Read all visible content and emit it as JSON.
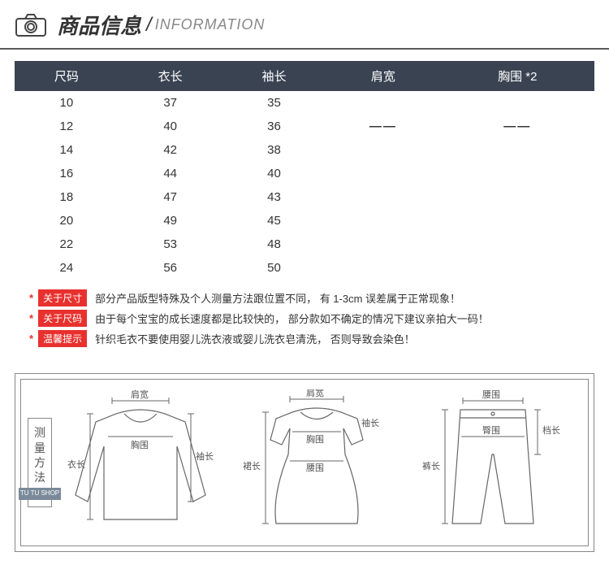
{
  "header": {
    "title_cn": "商品信息",
    "title_en": "INFORMATION"
  },
  "table": {
    "type": "table",
    "header_bg": "#3a4352",
    "header_color": "#ffffff",
    "columns": [
      "尺码",
      "衣长",
      "袖长",
      "肩宽",
      "胸围 *2"
    ],
    "rows": [
      [
        "10",
        "37",
        "35",
        "",
        ""
      ],
      [
        "12",
        "40",
        "36",
        "——",
        "——"
      ],
      [
        "14",
        "42",
        "38",
        "",
        ""
      ],
      [
        "16",
        "44",
        "40",
        "",
        ""
      ],
      [
        "18",
        "47",
        "43",
        "",
        ""
      ],
      [
        "20",
        "49",
        "45",
        "",
        ""
      ],
      [
        "22",
        "53",
        "48",
        "",
        ""
      ],
      [
        "24",
        "56",
        "50",
        "",
        ""
      ]
    ]
  },
  "notes": [
    {
      "tag": "关于尺寸",
      "text": "部分产品版型特殊及个人测量方法跟位置不同， 有 1-3cm 误差属于正常现象！"
    },
    {
      "tag": "关于尺码",
      "text": "由于每个宝宝的成长速度都是比较快的， 部分款如不确定的情况下建议亲拍大一码！"
    },
    {
      "tag": "温馨提示",
      "text": "针织毛衣不要使用婴儿洗衣液或婴儿洗衣皂清洗， 否则导致会染色！"
    }
  ],
  "note_style": {
    "star_color": "#e8312e",
    "tag_bg": "#e8312e",
    "tag_color": "#ffffff"
  },
  "diagram": {
    "label_chars": [
      "测",
      "量",
      "方",
      "法"
    ],
    "shop_tag": "TU TU SHOP",
    "labels": {
      "shoulder": "肩宽",
      "chest": "胸围",
      "length": "衣长",
      "sleeve": "袖长",
      "skirt": "裙长",
      "waist": "腰围",
      "hip": "臀围",
      "pants": "裤长",
      "rise": "档长"
    }
  }
}
